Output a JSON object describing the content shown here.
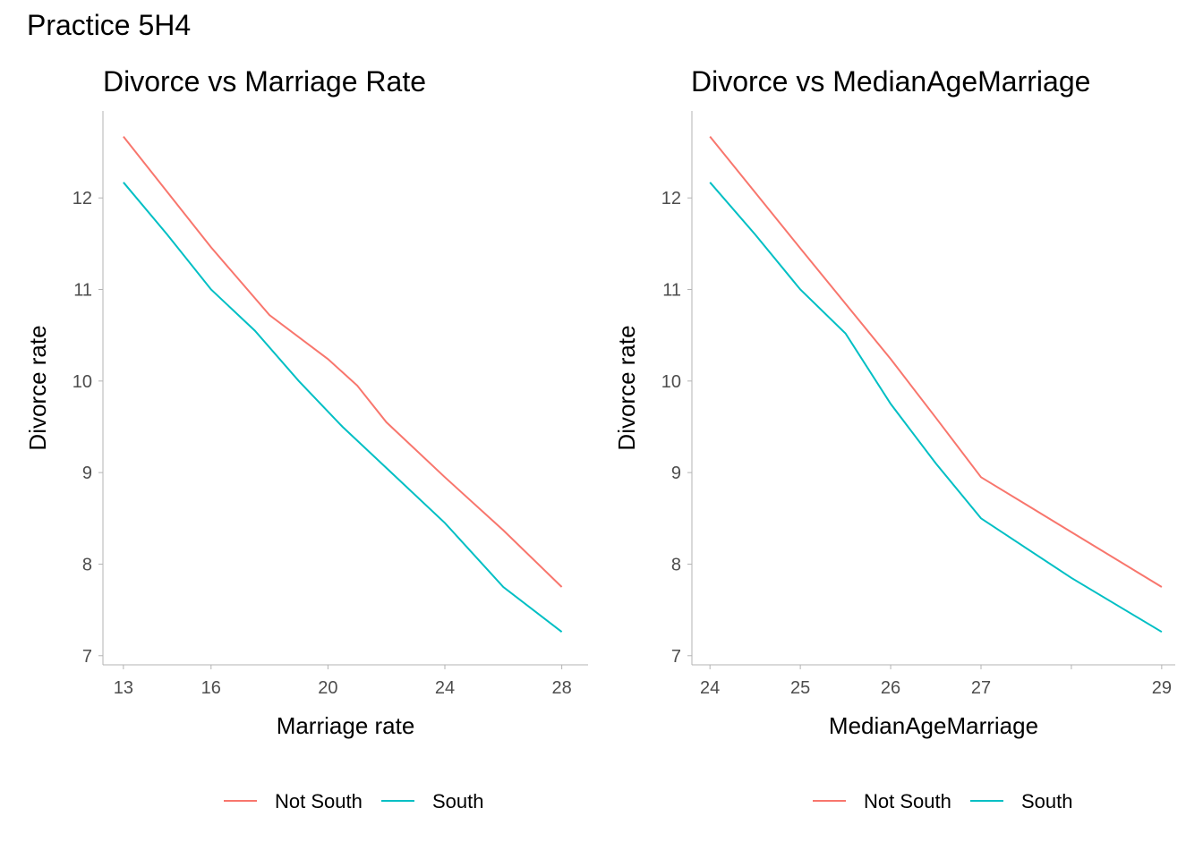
{
  "page": {
    "title": "Practice 5H4"
  },
  "colors": {
    "not_south": "#F8766D",
    "south": "#00BFC4"
  },
  "chart_data": [
    {
      "type": "line",
      "title": "Divorce vs Marriage Rate",
      "xlabel": "Marriage rate",
      "ylabel": "Divorce rate",
      "xlim": [
        12.3,
        28.9
      ],
      "ylim": [
        6.9,
        12.95
      ],
      "x_ticks": [
        13,
        16,
        20,
        24,
        28
      ],
      "y_ticks": [
        7,
        8,
        9,
        10,
        11,
        12
      ],
      "legend": {
        "position": "bottom",
        "entries": [
          "Not South",
          "South"
        ]
      },
      "series": [
        {
          "name": "Not South",
          "color": "#F8766D",
          "points": [
            [
              13,
              12.67
            ],
            [
              16,
              11.46
            ],
            [
              18,
              10.72
            ],
            [
              20,
              10.24
            ],
            [
              21,
              9.95
            ],
            [
              22,
              9.55
            ],
            [
              24,
              8.95
            ],
            [
              26,
              8.37
            ],
            [
              28,
              7.75
            ]
          ]
        },
        {
          "name": "South",
          "color": "#00BFC4",
          "points": [
            [
              13,
              12.17
            ],
            [
              14.5,
              11.6
            ],
            [
              16,
              11.0
            ],
            [
              17.5,
              10.55
            ],
            [
              19,
              10.0
            ],
            [
              20.5,
              9.5
            ],
            [
              22,
              9.05
            ],
            [
              24,
              8.45
            ],
            [
              26,
              7.75
            ],
            [
              28,
              7.26
            ]
          ]
        }
      ]
    },
    {
      "type": "line",
      "title": "Divorce vs MedianAgeMarriage",
      "xlabel": "MedianAgeMarriage",
      "ylabel": "Divorce rate",
      "xlim": [
        23.8,
        29.15
      ],
      "ylim": [
        6.9,
        12.95
      ],
      "x_ticks": [
        24,
        25,
        26,
        27,
        28,
        29
      ],
      "x_tick_labels": [
        "24",
        "25",
        "26",
        "27",
        "",
        "29"
      ],
      "y_ticks": [
        7,
        8,
        9,
        10,
        11,
        12
      ],
      "legend": {
        "position": "bottom",
        "entries": [
          "Not South",
          "South"
        ]
      },
      "series": [
        {
          "name": "Not South",
          "color": "#F8766D",
          "points": [
            [
              24,
              12.67
            ],
            [
              25,
              11.45
            ],
            [
              26,
              10.24
            ],
            [
              26.5,
              9.6
            ],
            [
              27,
              8.95
            ],
            [
              28,
              8.35
            ],
            [
              29,
              7.75
            ]
          ]
        },
        {
          "name": "South",
          "color": "#00BFC4",
          "points": [
            [
              24,
              12.17
            ],
            [
              24.5,
              11.6
            ],
            [
              25,
              11.0
            ],
            [
              25.5,
              10.52
            ],
            [
              26,
              9.75
            ],
            [
              26.5,
              9.1
            ],
            [
              27,
              8.5
            ],
            [
              28,
              7.85
            ],
            [
              29,
              7.26
            ]
          ]
        }
      ]
    }
  ]
}
